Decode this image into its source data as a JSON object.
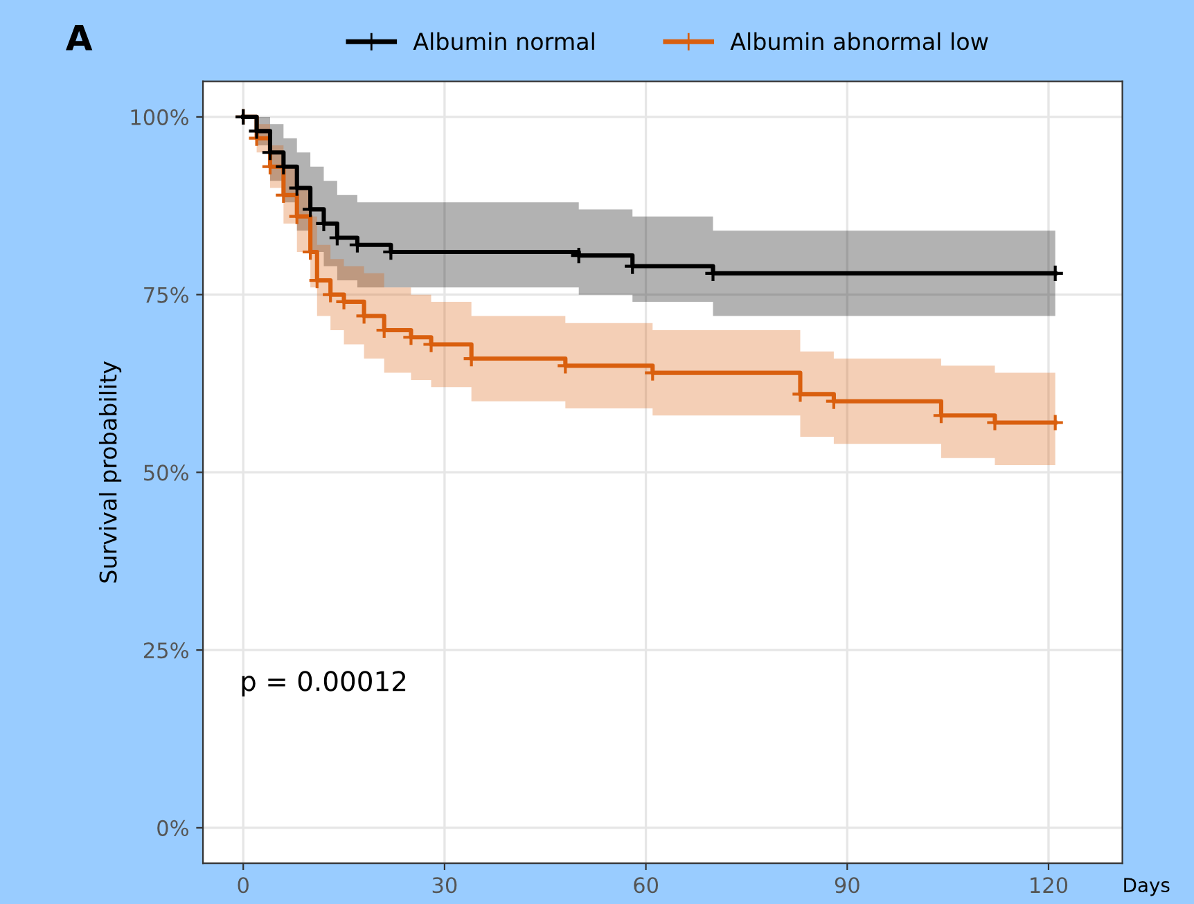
{
  "chart_data": {
    "type": "step",
    "title": "A",
    "xlabel": "Days",
    "ylabel": "Survival probability",
    "xlim": [
      -6,
      131
    ],
    "ylim": [
      -5,
      105
    ],
    "xticks": [
      0,
      30,
      60,
      90,
      120
    ],
    "yticks": [
      {
        "value": 0,
        "label": "0%"
      },
      {
        "value": 25,
        "label": "25%"
      },
      {
        "value": 50,
        "label": "50%"
      },
      {
        "value": 75,
        "label": "75%"
      },
      {
        "value": 100,
        "label": "100%"
      }
    ],
    "grid": true,
    "legend": "top",
    "marker": "cross",
    "annotations": [
      "p = 0.00012"
    ],
    "series": [
      {
        "name": "Albumin normal",
        "color": "#000000",
        "x": [
          0,
          2,
          4,
          6,
          8,
          10,
          12,
          14,
          17,
          22,
          50,
          58,
          70,
          121
        ],
        "values": [
          100,
          98,
          95,
          93,
          90,
          87,
          85,
          83,
          82,
          81,
          80.5,
          79,
          78,
          78
        ],
        "lower": [
          100,
          96,
          91,
          88,
          84,
          81,
          79,
          77,
          76,
          76,
          75,
          74,
          72,
          72
        ],
        "upper": [
          100,
          100,
          99,
          97,
          95,
          93,
          91,
          89,
          88,
          88,
          87,
          86,
          84,
          84
        ]
      },
      {
        "name": "Albumin abnormal low",
        "color": "#d95f0e",
        "x": [
          0,
          2,
          4,
          6,
          8,
          10,
          11,
          13,
          15,
          18,
          21,
          25,
          28,
          34,
          48,
          61,
          83,
          88,
          104,
          112,
          121
        ],
        "values": [
          100,
          97,
          93,
          89,
          86,
          81,
          77,
          75,
          74,
          72,
          70,
          69,
          68,
          66,
          65,
          64,
          61,
          60,
          58,
          57,
          57
        ],
        "lower": [
          100,
          95,
          90,
          85,
          81,
          76,
          72,
          70,
          68,
          66,
          64,
          63,
          62,
          60,
          59,
          58,
          55,
          54,
          52,
          51,
          51
        ],
        "upper": [
          100,
          99,
          96,
          93,
          90,
          86,
          82,
          80,
          79,
          78,
          76,
          75,
          74,
          72,
          71,
          70,
          67,
          66,
          65,
          64,
          64
        ]
      }
    ]
  }
}
